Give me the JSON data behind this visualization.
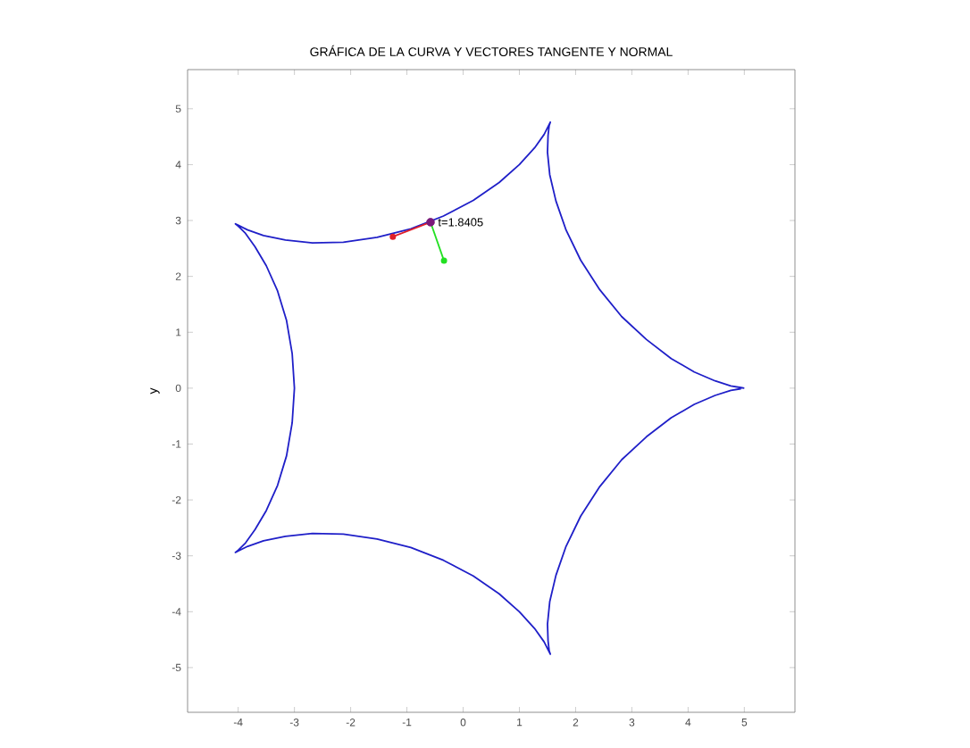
{
  "chart_data": {
    "type": "line",
    "title": "GRÁFICA DE LA CURVA Y VECTORES TANGENTE Y NORMAL",
    "ylabel": "y",
    "xlim": [
      -4.9,
      5.9
    ],
    "ylim": [
      -5.8,
      5.7
    ],
    "xticks": [
      -4,
      -3,
      -2,
      -1,
      0,
      1,
      2,
      3,
      4,
      5
    ],
    "yticks": [
      -5,
      -4,
      -3,
      -2,
      -1,
      0,
      1,
      2,
      3,
      4,
      5
    ],
    "annotations": [
      {
        "text": "t=1.8405",
        "x": -0.58,
        "y": 2.97
      }
    ],
    "series": [
      {
        "color": "#1f1fc8",
        "marker": "none",
        "x": [
          5.0,
          4.94,
          4.76,
          4.48,
          4.11,
          3.7,
          3.26,
          2.82,
          2.43,
          2.09,
          1.83,
          1.65,
          1.54,
          1.5,
          1.51,
          1.53,
          1.55,
          1.52,
          1.44,
          1.27,
          1.0,
          0.64,
          0.18,
          -0.35,
          -0.93,
          -1.53,
          -2.13,
          -2.68,
          -3.16,
          -3.55,
          -3.83,
          -3.99,
          -4.05,
          -4.0,
          -3.87,
          -3.7,
          -3.5,
          -3.3,
          -3.14,
          -3.04,
          -3.0,
          -3.04,
          -3.14,
          -3.3,
          -3.5,
          -3.7,
          -3.87,
          -4.0,
          -4.05,
          -3.99,
          -3.83,
          -3.55,
          -3.16,
          -2.68,
          -2.13,
          -1.53,
          -0.93,
          -0.35,
          0.18,
          0.64,
          1.0,
          1.27,
          1.44,
          1.52,
          1.55,
          1.53,
          1.51,
          1.5,
          1.54,
          1.65,
          1.83,
          2.09,
          2.43,
          2.82,
          3.26,
          3.7,
          4.11,
          4.48,
          4.76,
          4.94
        ],
        "values": [
          0.0,
          0.01,
          0.04,
          0.13,
          0.29,
          0.53,
          0.87,
          1.28,
          1.76,
          2.29,
          2.83,
          3.35,
          3.82,
          4.22,
          4.52,
          4.7,
          4.76,
          4.7,
          4.54,
          4.3,
          4.0,
          3.68,
          3.36,
          3.08,
          2.85,
          2.7,
          2.61,
          2.6,
          2.65,
          2.73,
          2.83,
          2.91,
          2.94,
          2.9,
          2.77,
          2.53,
          2.19,
          1.74,
          1.21,
          0.62,
          0.0,
          -0.62,
          -1.21,
          -1.74,
          -2.19,
          -2.53,
          -2.77,
          -2.9,
          -2.94,
          -2.91,
          -2.83,
          -2.73,
          -2.65,
          -2.6,
          -2.61,
          -2.7,
          -2.85,
          -3.08,
          -3.36,
          -3.68,
          -4.0,
          -4.3,
          -4.54,
          -4.7,
          -4.76,
          -4.7,
          -4.52,
          -4.22,
          -3.82,
          -3.35,
          -2.83,
          -2.29,
          -1.76,
          -1.28,
          -0.87,
          -0.53,
          -0.29,
          -0.13,
          -0.04,
          -0.01
        ]
      },
      {
        "color": "#e0202a",
        "marker": "circle",
        "x": [
          -0.58,
          -1.25
        ],
        "values": [
          2.97,
          2.71
        ]
      },
      {
        "color": "#22e022",
        "marker": "circle",
        "x": [
          -0.58,
          -0.34
        ],
        "values": [
          2.97,
          2.28
        ]
      },
      {
        "type": "scatter",
        "color": "#7a1a7a",
        "marker": "circle",
        "x": [
          -0.58
        ],
        "values": [
          2.97
        ]
      }
    ]
  }
}
